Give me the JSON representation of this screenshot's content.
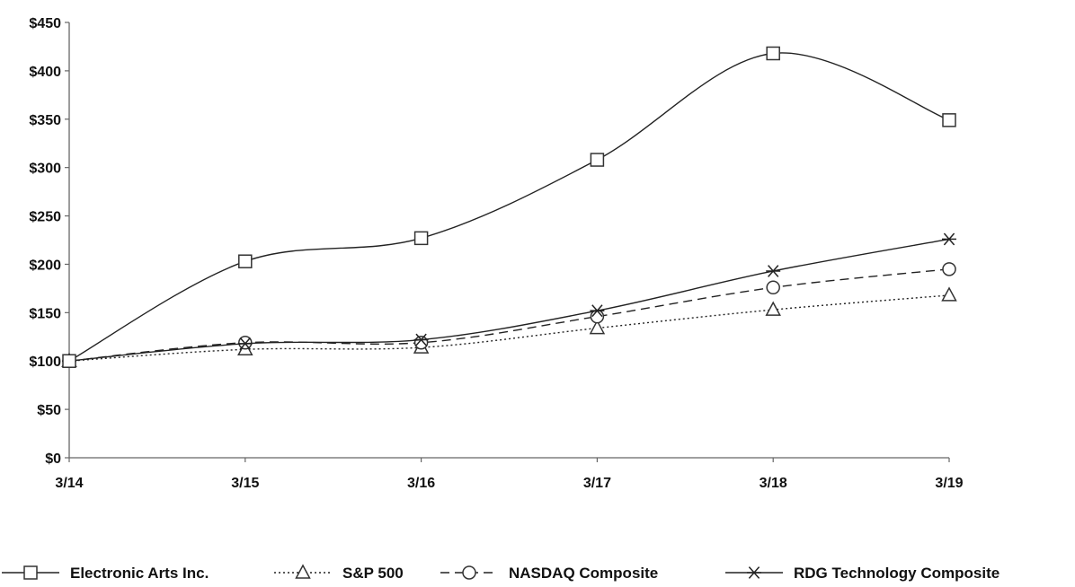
{
  "chart_data": {
    "type": "line",
    "title": "",
    "xlabel": "",
    "ylabel": "",
    "categories": [
      "3/14",
      "3/15",
      "3/16",
      "3/17",
      "3/18",
      "3/19"
    ],
    "ylim": [
      0,
      450
    ],
    "yticks": [
      0,
      50,
      100,
      150,
      200,
      250,
      300,
      350,
      400,
      450
    ],
    "ytick_labels": [
      "$0",
      "$50",
      "$100",
      "$150",
      "$200",
      "$250",
      "$300",
      "$350",
      "$400",
      "$450"
    ],
    "grid": false,
    "legend_position": "bottom",
    "series": [
      {
        "name": "Electronic Arts Inc.",
        "marker": "square",
        "line": "solid",
        "smooth": true,
        "values": [
          100,
          203,
          227,
          308,
          418,
          349
        ]
      },
      {
        "name": "S&P 500",
        "marker": "triangle",
        "line": "dotted",
        "smooth": true,
        "values": [
          100,
          112,
          114,
          134,
          153,
          168
        ]
      },
      {
        "name": "NASDAQ Composite",
        "marker": "circle",
        "line": "dashed",
        "smooth": true,
        "values": [
          100,
          119,
          119,
          146,
          176,
          195
        ]
      },
      {
        "name": "RDG Technology Composite",
        "marker": "asterisk",
        "line": "solid",
        "smooth": true,
        "values": [
          100,
          118,
          122,
          152,
          193,
          226
        ]
      }
    ]
  }
}
